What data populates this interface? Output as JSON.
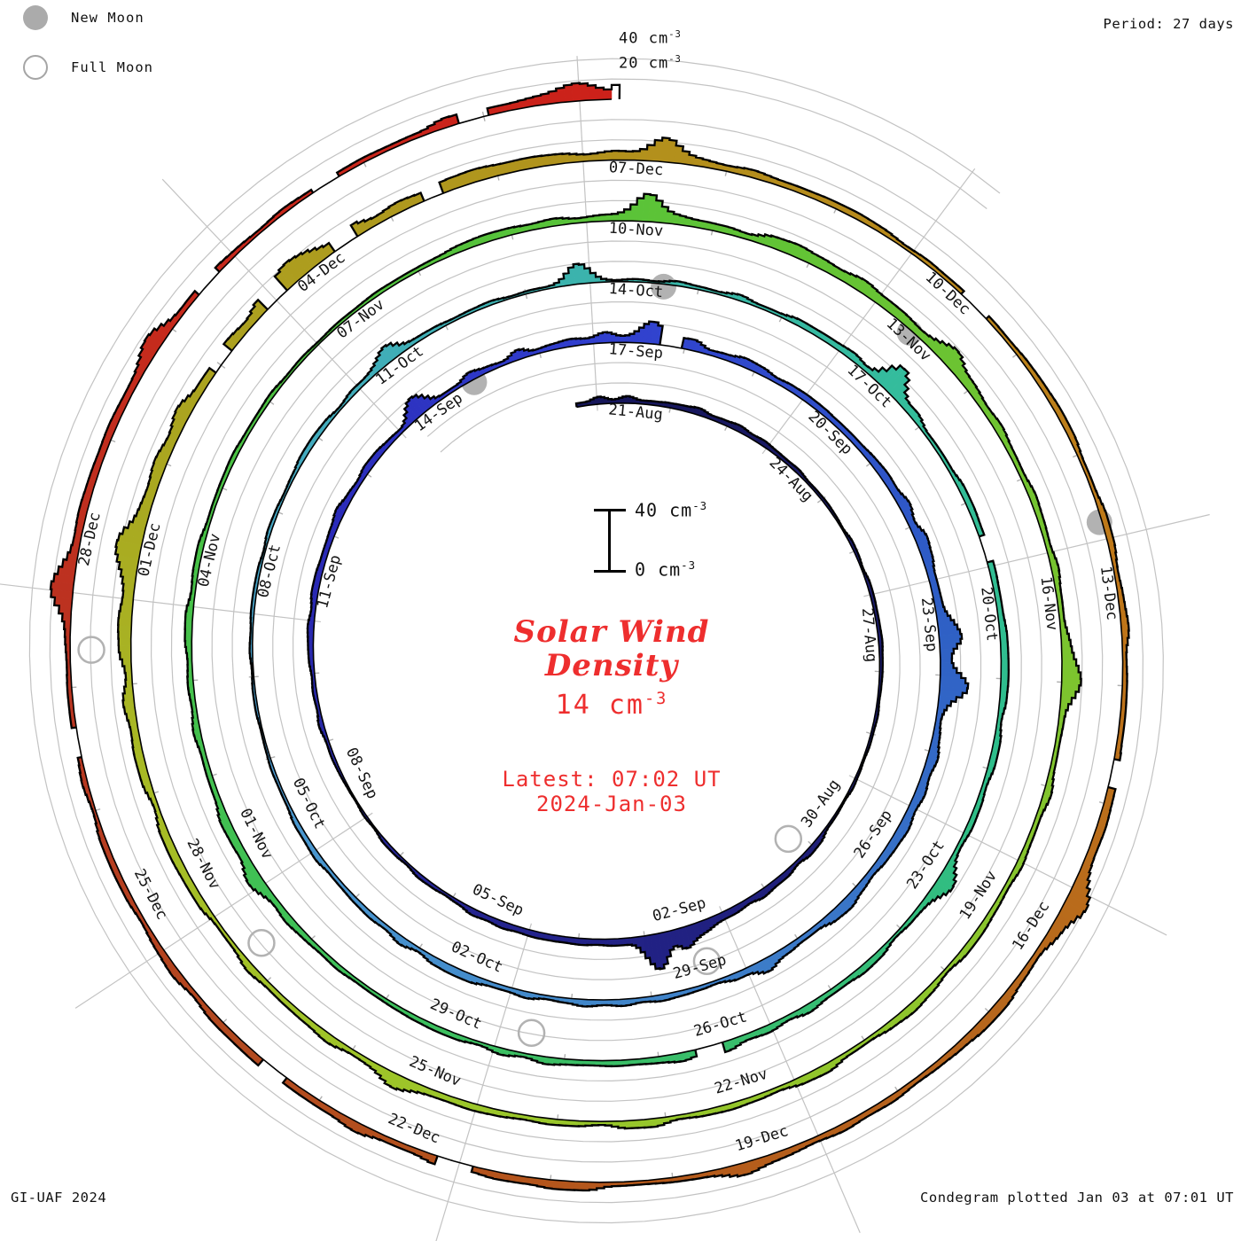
{
  "header": {
    "period": "Period: 27 days"
  },
  "legend": {
    "new_moon": "New Moon",
    "full_moon": "Full Moon"
  },
  "footer": {
    "left": "GI-UAF 2024",
    "right": "Condegram plotted Jan 03 at 07:01 UT"
  },
  "center": {
    "title1": "Solar Wind",
    "title2": "Density",
    "value": "14 cm",
    "value_exp": "-3",
    "latest_time": "Latest: 07:02 UT",
    "latest_date": "2024-Jan-03"
  },
  "axis_top": {
    "l40": "40 cm",
    "l20": "20 cm",
    "exp": "-3"
  },
  "scalebar": {
    "top": "40 cm",
    "bottom": "0 cm",
    "exp": "-3"
  },
  "chart_data": {
    "type": "area",
    "variant": "condegram-spiral",
    "title": "Solar Wind Density",
    "units": "cm^-3",
    "period_days": 27,
    "sector_step_days": 3,
    "start_label": "21-Aug",
    "end_label": "03-Jan",
    "latest_value_cm3": 14,
    "scale_reference": {
      "zero": "0 cm^-3",
      "forty": "40 cm^-3"
    },
    "date_labels": [
      {
        "day": 0,
        "label": "21-Aug"
      },
      {
        "day": 3,
        "label": "24-Aug"
      },
      {
        "day": 6,
        "label": "27-Aug"
      },
      {
        "day": 9,
        "label": "30-Aug"
      },
      {
        "day": 12,
        "label": "02-Sep"
      },
      {
        "day": 15,
        "label": "05-Sep"
      },
      {
        "day": 18,
        "label": "08-Sep"
      },
      {
        "day": 21,
        "label": "11-Sep"
      },
      {
        "day": 24,
        "label": "14-Sep"
      },
      {
        "day": 27,
        "label": "17-Sep"
      },
      {
        "day": 30,
        "label": "20-Sep"
      },
      {
        "day": 33,
        "label": "23-Sep"
      },
      {
        "day": 36,
        "label": "26-Sep"
      },
      {
        "day": 39,
        "label": "29-Sep"
      },
      {
        "day": 42,
        "label": "02-Oct"
      },
      {
        "day": 45,
        "label": "05-Oct"
      },
      {
        "day": 48,
        "label": "08-Oct"
      },
      {
        "day": 51,
        "label": "11-Oct"
      },
      {
        "day": 54,
        "label": "14-Oct"
      },
      {
        "day": 57,
        "label": "17-Oct"
      },
      {
        "day": 60,
        "label": "20-Oct"
      },
      {
        "day": 63,
        "label": "23-Oct"
      },
      {
        "day": 66,
        "label": "26-Oct"
      },
      {
        "day": 69,
        "label": "29-Oct"
      },
      {
        "day": 72,
        "label": "01-Nov"
      },
      {
        "day": 75,
        "label": "04-Nov"
      },
      {
        "day": 78,
        "label": "07-Nov"
      },
      {
        "day": 81,
        "label": "10-Nov"
      },
      {
        "day": 84,
        "label": "13-Nov"
      },
      {
        "day": 87,
        "label": "16-Nov"
      },
      {
        "day": 90,
        "label": "19-Nov"
      },
      {
        "day": 93,
        "label": "22-Nov"
      },
      {
        "day": 96,
        "label": "25-Nov"
      },
      {
        "day": 99,
        "label": "28-Nov"
      },
      {
        "day": 102,
        "label": "01-Dec"
      },
      {
        "day": 105,
        "label": "04-Dec"
      },
      {
        "day": 108,
        "label": "07-Dec"
      },
      {
        "day": 111,
        "label": "10-Dec"
      },
      {
        "day": 114,
        "label": "13-Dec"
      },
      {
        "day": 117,
        "label": "16-Dec"
      },
      {
        "day": 120,
        "label": "19-Dec"
      },
      {
        "day": 123,
        "label": "22-Dec"
      },
      {
        "day": 126,
        "label": "25-Dec"
      },
      {
        "day": 129,
        "label": "28-Dec"
      }
    ],
    "density_3day": [
      {
        "d": -1,
        "v": 8
      },
      {
        "d": 0,
        "v": 8
      },
      {
        "d": 3,
        "v": 5
      },
      {
        "d": 6,
        "v": 4.5
      },
      {
        "d": 9,
        "v": 4
      },
      {
        "d": 12,
        "v": 16
      },
      {
        "d": 15,
        "v": 9
      },
      {
        "d": 18,
        "v": 4
      },
      {
        "d": 21,
        "v": 7
      },
      {
        "d": 24,
        "v": 11
      },
      {
        "d": 27,
        "v": 16
      },
      {
        "d": 30,
        "v": 6
      },
      {
        "d": 33,
        "v": 18
      },
      {
        "d": 36,
        "v": 12
      },
      {
        "d": 39,
        "v": 8
      },
      {
        "d": 42,
        "v": 9
      },
      {
        "d": 45,
        "v": 6
      },
      {
        "d": 48,
        "v": 4.5
      },
      {
        "d": 51,
        "v": 10
      },
      {
        "d": 54,
        "v": 3.5
      },
      {
        "d": 57,
        "v": 11
      },
      {
        "d": 60,
        "v": 9
      },
      {
        "d": 63,
        "v": 7
      },
      {
        "d": 66,
        "v": 12
      },
      {
        "d": 69,
        "v": 6
      },
      {
        "d": 72,
        "v": 9
      },
      {
        "d": 75,
        "v": 7.5
      },
      {
        "d": 78,
        "v": 4
      },
      {
        "d": 81,
        "v": 10
      },
      {
        "d": 84,
        "v": 18
      },
      {
        "d": 87,
        "v": 9
      },
      {
        "d": 90,
        "v": 11
      },
      {
        "d": 93,
        "v": 13
      },
      {
        "d": 96,
        "v": 8
      },
      {
        "d": 99,
        "v": 10
      },
      {
        "d": 102,
        "v": 14
      },
      {
        "d": 105,
        "v": 15
      },
      {
        "d": 108,
        "v": 10
      },
      {
        "d": 111,
        "v": 4.5
      },
      {
        "d": 114,
        "v": 8
      },
      {
        "d": 117,
        "v": 16
      },
      {
        "d": 120,
        "v": 14
      },
      {
        "d": 123,
        "v": 10
      },
      {
        "d": 126,
        "v": 8
      },
      {
        "d": 129,
        "v": 12
      },
      {
        "d": 132,
        "v": 9
      },
      {
        "d": 135,
        "v": 14
      }
    ],
    "spikes": [
      [
        12.3,
        20
      ],
      [
        12.8,
        24
      ],
      [
        24.1,
        14
      ],
      [
        27.5,
        18
      ],
      [
        33.4,
        22
      ],
      [
        34.1,
        26
      ],
      [
        38.5,
        10
      ],
      [
        51.2,
        18
      ],
      [
        53.6,
        26
      ],
      [
        57.4,
        26
      ],
      [
        63.3,
        14
      ],
      [
        71.8,
        12
      ],
      [
        81.3,
        20
      ],
      [
        84.6,
        16
      ],
      [
        87.9,
        14
      ],
      [
        96.5,
        10
      ],
      [
        102.2,
        14
      ],
      [
        105.1,
        16
      ],
      [
        108.4,
        18
      ],
      [
        116.8,
        12
      ],
      [
        120.3,
        10
      ],
      [
        128.8,
        18
      ],
      [
        130.8,
        16
      ],
      [
        134.7,
        12
      ]
    ],
    "gaps": [
      [
        27.6,
        27.9
      ],
      [
        59.4,
        59.7
      ],
      [
        66.3,
        66.6
      ],
      [
        103.9,
        104.15
      ],
      [
        104.6,
        104.85
      ],
      [
        105.4,
        105.65
      ],
      [
        106.3,
        106.5
      ],
      [
        111.3,
        111.55
      ],
      [
        115.6,
        115.85
      ],
      [
        122.6,
        122.9
      ],
      [
        124.3,
        124.55
      ],
      [
        127.4,
        127.65
      ],
      [
        131.3,
        131.55
      ],
      [
        132.5,
        132.75
      ],
      [
        133.8,
        134.0
      ]
    ],
    "moons": {
      "new_days": [
        25.0,
        54.6,
        84.2,
        113.6
      ],
      "full_days": [
        10.2,
        39.2,
        68.4,
        98.3,
        128.3
      ]
    },
    "color_stops": [
      [
        0,
        "#16165a"
      ],
      [
        10,
        "#1e1e77"
      ],
      [
        16,
        "#252592"
      ],
      [
        22,
        "#2a2ab8"
      ],
      [
        27,
        "#3140cf"
      ],
      [
        33,
        "#2e5ec5"
      ],
      [
        40,
        "#4084c9"
      ],
      [
        46,
        "#4b9bd0"
      ],
      [
        50,
        "#42abbd"
      ],
      [
        54,
        "#3ab4ab"
      ],
      [
        58,
        "#33bd9a"
      ],
      [
        62,
        "#2ebd8a"
      ],
      [
        66,
        "#38bd6d"
      ],
      [
        71,
        "#3ec057"
      ],
      [
        76,
        "#49c144"
      ],
      [
        81,
        "#5ac338"
      ],
      [
        86,
        "#72c330"
      ],
      [
        91,
        "#8dc52c"
      ],
      [
        96,
        "#9cc62a"
      ],
      [
        100,
        "#a7bb25"
      ],
      [
        103,
        "#aaa620"
      ],
      [
        107,
        "#b0951d"
      ],
      [
        111,
        "#b8871b"
      ],
      [
        114,
        "#bf7719"
      ],
      [
        118,
        "#b6661c"
      ],
      [
        121,
        "#b55a1b"
      ],
      [
        125,
        "#b2481f"
      ],
      [
        128,
        "#b93421"
      ],
      [
        131,
        "#c62a1c"
      ],
      [
        135,
        "#cc211a"
      ]
    ],
    "grid_color": "#c3c3c3",
    "tick_color": "#b0b0b0",
    "moon_color": "#b2b2b2",
    "accent_red": "#ee2e2e"
  }
}
